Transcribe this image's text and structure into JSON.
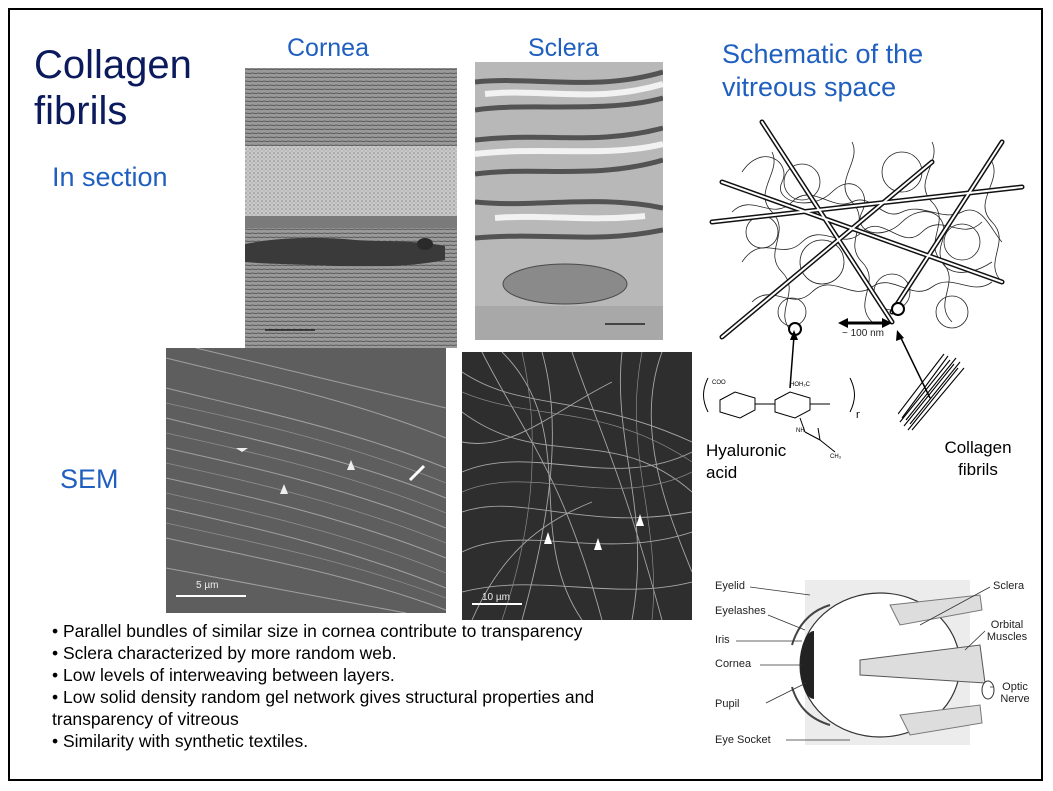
{
  "title": "Collagen fibrils",
  "in_section_label": "In section",
  "sem_label": "SEM",
  "cornea_label": "Cornea",
  "sclera_label": "Sclera",
  "schematic_title": "Schematic of the vitreous space",
  "schematic": {
    "scale_text": "~ 100 nm",
    "hyaluronic_label": "Hyaluronic acid",
    "collagen_label": "Collagen fibrils"
  },
  "micrographs": {
    "sem_left_scale": "5 µm",
    "sem_right_scale": "10 µm"
  },
  "eye_diagram": {
    "labels": [
      "Eyelid",
      "Eyelashes",
      "Iris",
      "Cornea",
      "Pupil",
      "Eye Socket",
      "Sclera",
      "Orbital Muscles",
      "Optic Nerve"
    ]
  },
  "bullets": [
    "Parallel bundles of similar size in cornea contribute to transparency",
    "Sclera characterized by more random web.",
    "Low levels of interweaving between layers.",
    "Low solid density random gel network gives structural properties and transparency of vitreous",
    "Similarity with synthetic textiles."
  ]
}
